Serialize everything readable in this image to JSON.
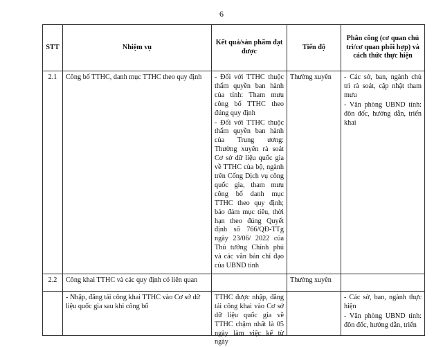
{
  "page_number": "6",
  "table": {
    "headers": [
      "STT",
      "Nhiệm vụ",
      "Kết quả/sản phẩm đạt được",
      "Tiến độ",
      "Phân công (cơ quan chủ trì/cơ quan phối hợp) và cách thức thực hiện"
    ],
    "rows": [
      {
        "stt": "2.1",
        "task": "Công bố TTHC, danh mục TTHC theo quy định",
        "result": [
          "- Đối với TTHC thuộc thẩm quyền ban hành của tỉnh: Tham mưu công bố TTHC theo đúng quy định",
          "- Đối với TTHC thuộc thẩm quyền ban hành của Trung ương: Thường xuyên rà soát Cơ sở dữ liệu quốc gia về TTHC của bộ, ngành trên Cổng Dịch vụ công quốc gia, tham mưu công bố danh mục TTHC theo quy định; bảo đảm mục tiêu, thời hạn theo đúng Quyết định số 766/QĐ-TTg ngày 23/06/ 2022 của Thủ tướng Chính phủ và các văn bản chỉ đạo của UBND tỉnh"
        ],
        "progress": "Thường xuyên",
        "assignment": [
          "- Các sở, ban, ngành chủ trì rà soát, cập nhật tham mưu",
          "- Văn phòng UBND tỉnh: đôn đốc, hướng dẫn, triển khai"
        ]
      },
      {
        "stt": "2.2",
        "task": "Công khai TTHC và các quy định có liên quan",
        "result": [],
        "progress": "Thường xuyên",
        "assignment": []
      },
      {
        "stt": "",
        "task": "- Nhập, đăng tải công khai TTHC vào Cơ sở dữ liệu quốc gia sau khi công bố",
        "result": [
          "TTHC được nhập, đăng tải công khai vào Cơ sở dữ liệu quốc gia về TTHC chậm nhất là 05 ngày làm việc kể từ ngày"
        ],
        "progress": "",
        "assignment": [
          "- Các sở, ban, ngành thực hiện",
          "- Văn phòng UBND tỉnh: đôn đốc, hướng dẫn, triển"
        ]
      }
    ]
  }
}
